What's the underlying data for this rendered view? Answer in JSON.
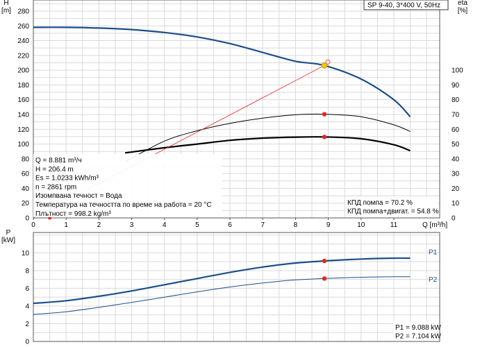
{
  "chart_data": [
    {
      "type": "line",
      "title": "SP 9-40, 3*400 V, 50Hz",
      "xlabel": "Q [m³/h]",
      "ylabel": "H\n[m]",
      "y2label": "eta\n[%]",
      "xlim": [
        0,
        12.4
      ],
      "ylim": [
        0,
        295
      ],
      "y2lim": [
        0,
        147.5
      ],
      "x_ticks": [
        0,
        1,
        2,
        3,
        4,
        5,
        6,
        7,
        8,
        9,
        10,
        11
      ],
      "y_ticks": [
        0,
        20,
        40,
        60,
        80,
        100,
        120,
        140,
        160,
        180,
        200,
        220,
        240,
        260,
        280
      ],
      "y2_ticks": [
        0,
        10,
        20,
        30,
        40,
        50,
        60,
        70,
        80,
        90,
        100
      ],
      "grid": true,
      "series": [
        {
          "axis": "left",
          "color": "#1a4e8a",
          "x": [
            0,
            1,
            2,
            3,
            4,
            5,
            6,
            7,
            8,
            8.881,
            10,
            11,
            11.5
          ],
          "y": [
            258,
            258,
            257,
            255,
            251,
            245,
            236,
            224,
            212,
            206.4,
            188,
            160,
            137
          ]
        },
        {
          "axis": "right",
          "color": "#000000",
          "x": [
            2.8,
            4,
            5,
            6,
            7,
            8,
            8.881,
            10,
            11,
            11.5
          ],
          "y": [
            38,
            52,
            59,
            64,
            67.5,
            69.8,
            70.2,
            68.5,
            63,
            58.5
          ]
        },
        {
          "axis": "right",
          "color": "#000000",
          "x": [
            2.8,
            4,
            5,
            6,
            7,
            8,
            8.881,
            10,
            11,
            11.5
          ],
          "y": [
            44,
            47.5,
            50,
            52.5,
            54,
            54.7,
            54.8,
            53.6,
            49.5,
            45.5
          ]
        }
      ],
      "duty_point": {
        "x": 8.881,
        "y": 206.4
      },
      "info_box": [
        "Q = 8.881 m³/ч",
        "H = 206.4 m",
        "Es = 1.0233 kWh/m³",
        "n = 2861 rpm",
        "Изомпвана течност = Вода",
        "Температура на течността по време на работа = 20 °C",
        "Плътност = 998.2 kg/m³"
      ],
      "efficiency_labels": [
        "КПД помпа = 70.2 %",
        "КПД помпа+двигат. = 54.8 %"
      ],
      "colors": {
        "head": "#1a4e8a",
        "eta": "#000000",
        "dot": "#e8251f",
        "guide": "#e8251f",
        "duty": "#f3c800"
      }
    },
    {
      "type": "line",
      "title": "",
      "xlabel": "",
      "ylabel": "P\n[kW]",
      "xlim": [
        0,
        12.4
      ],
      "ylim": [
        0,
        12.3
      ],
      "y_ticks": [
        0,
        2,
        4,
        6,
        8,
        10
      ],
      "grid": true,
      "series": [
        {
          "name": "P1",
          "color": "#1a4e8a",
          "x": [
            0,
            1,
            2,
            3,
            4,
            5,
            6,
            7,
            8,
            8.881,
            10,
            11,
            11.5
          ],
          "y": [
            4.3,
            4.6,
            5.1,
            5.7,
            6.4,
            7.1,
            7.8,
            8.4,
            8.85,
            9.088,
            9.3,
            9.4,
            9.4
          ]
        },
        {
          "name": "P2",
          "color": "#1a4e8a",
          "x": [
            0,
            1,
            2,
            3,
            4,
            5,
            6,
            7,
            8,
            8.881,
            10,
            11,
            11.5
          ],
          "y": [
            3.05,
            3.35,
            3.85,
            4.4,
            5.0,
            5.6,
            6.15,
            6.6,
            6.95,
            7.104,
            7.25,
            7.3,
            7.3
          ]
        }
      ],
      "power_labels": [
        "P1 = 9.088 kW",
        "P2 = 7.104 kW"
      ]
    }
  ]
}
